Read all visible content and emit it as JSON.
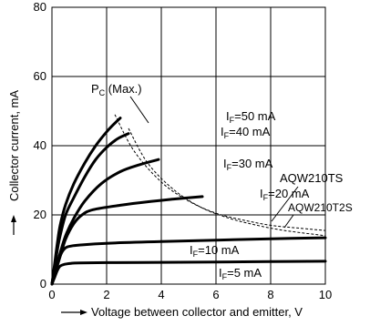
{
  "chart_data": {
    "type": "line",
    "xlabel": "Voltage between collector and emitter, V",
    "ylabel": "Collector current, mA",
    "xlim": [
      0,
      10
    ],
    "ylim": [
      0,
      80
    ],
    "xticks": [
      0,
      2,
      4,
      6,
      8,
      10
    ],
    "yticks": [
      0,
      20,
      40,
      60,
      80
    ],
    "grid": true,
    "series": [
      {
        "name": "IF=50 mA",
        "label_main": "I",
        "label_sub": "F",
        "label_rest": "=50 mA",
        "x": [
          0,
          0.1,
          0.2,
          0.3,
          0.5,
          0.8,
          1.2,
          1.6,
          2.0,
          2.3,
          2.5
        ],
        "y": [
          0,
          6,
          12,
          17,
          23,
          29,
          35,
          40,
          44,
          46.5,
          48
        ]
      },
      {
        "name": "IF=40 mA",
        "label_main": "I",
        "label_sub": "F",
        "label_rest": "=40 mA",
        "x": [
          0,
          0.1,
          0.2,
          0.3,
          0.5,
          0.8,
          1.2,
          1.6,
          2.0,
          2.4,
          2.8
        ],
        "y": [
          0,
          5,
          10,
          14,
          20,
          25,
          31,
          36,
          39.5,
          42,
          43.5
        ]
      },
      {
        "name": "IF=30 mA",
        "label_main": "I",
        "label_sub": "F",
        "label_rest": "=30 mA",
        "x": [
          0,
          0.15,
          0.3,
          0.5,
          0.8,
          1.2,
          1.8,
          2.5,
          3.2,
          3.9
        ],
        "y": [
          0,
          5,
          9,
          14,
          19,
          24,
          29,
          32.5,
          34.5,
          36
        ]
      },
      {
        "name": "IF=20 mA",
        "label_main": "I",
        "label_sub": "F",
        "label_rest": "=20 mA",
        "x": [
          0,
          0.15,
          0.3,
          0.5,
          0.8,
          1.1,
          1.5,
          2.5,
          3.5,
          4.5,
          5.5
        ],
        "y": [
          0,
          4,
          8,
          13,
          17.5,
          20,
          21.5,
          22.8,
          23.8,
          24.6,
          25.3
        ]
      },
      {
        "name": "IF=10 mA",
        "label_main": "I",
        "label_sub": "F",
        "label_rest": "=10 mA",
        "x": [
          0,
          0.1,
          0.2,
          0.35,
          0.5,
          0.7,
          1.0,
          2.0,
          4.0,
          6.0,
          8.0,
          10.0
        ],
        "y": [
          0,
          3,
          6,
          9,
          10.5,
          11,
          11.3,
          11.8,
          12.3,
          12.7,
          13.1,
          13.4
        ]
      },
      {
        "name": "IF=5 mA",
        "label_main": "I",
        "label_sub": "F",
        "label_rest": "=5 mA",
        "x": [
          0,
          0.1,
          0.2,
          0.3,
          0.45,
          0.7,
          1.0,
          2.0,
          4.0,
          6.0,
          8.0,
          10.0
        ],
        "y": [
          0,
          2,
          4,
          5.2,
          5.7,
          6.0,
          6.1,
          6.2,
          6.3,
          6.4,
          6.5,
          6.6
        ]
      }
    ],
    "limit_curves": [
      {
        "name": "AQW210TS",
        "x": [
          2.3,
          3.0,
          4.0,
          5.0,
          6.0,
          7.0,
          8.0,
          9.0,
          10.0
        ],
        "y": [
          49,
          38.5,
          29.5,
          24,
          20.5,
          18.5,
          17,
          16.2,
          15.5
        ]
      },
      {
        "name": "AQW210T2S",
        "x": [
          2.8,
          3.5,
          4.5,
          5.5,
          6.5,
          7.5,
          8.5,
          10.0
        ],
        "y": [
          45,
          35,
          27,
          22,
          19,
          17,
          15.5,
          14
        ]
      }
    ],
    "annotations": [
      {
        "id": "pc",
        "main": "P",
        "sub": "C",
        "rest": " (Max.)"
      },
      {
        "id": "ts",
        "text": "AQW210TS"
      },
      {
        "id": "t2s",
        "text": "AQW210T2S"
      }
    ]
  }
}
